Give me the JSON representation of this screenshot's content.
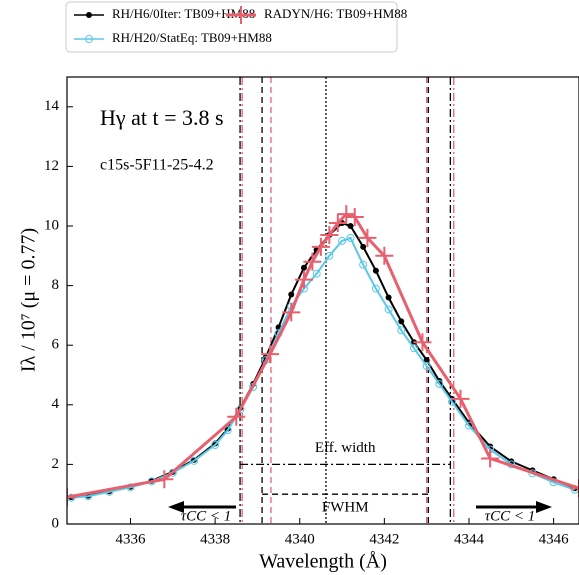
{
  "chart_data": {
    "type": "line",
    "x_label": "Wavelength (Å)",
    "y_label": "Iλ / 10⁷ (μ = 0.77)",
    "annotations": [
      "Hγ at t = 3.8 s",
      "c15s-5F11-25-4.2"
    ],
    "xlim": [
      4334.5,
      4346.6
    ],
    "ylim": [
      0,
      15
    ],
    "xticks": [
      4336,
      4338,
      4340,
      4342,
      4344,
      4346
    ],
    "yticks": [
      0,
      2,
      4,
      6,
      8,
      10,
      12,
      14
    ],
    "legend": "top",
    "series": [
      {
        "name": "RH/H6/0Iter: TB09+HM88",
        "color": "#000000",
        "marker": "dot",
        "x": [
          4334.6,
          4335.0,
          4335.5,
          4336.0,
          4336.5,
          4337.0,
          4337.5,
          4338.0,
          4338.3,
          4338.6,
          4338.9,
          4339.2,
          4339.5,
          4339.8,
          4340.1,
          4340.4,
          4340.7,
          4341.0,
          4341.2,
          4341.5,
          4341.8,
          4342.1,
          4342.4,
          4342.7,
          4343.0,
          4343.3,
          4343.6,
          4344.0,
          4344.5,
          4345.0,
          4345.5,
          4346.0,
          4346.5
        ],
        "values": [
          0.9,
          0.95,
          1.1,
          1.25,
          1.45,
          1.75,
          2.15,
          2.7,
          3.2,
          3.9,
          4.7,
          5.6,
          6.6,
          7.7,
          8.6,
          9.2,
          9.7,
          10.1,
          10.0,
          9.3,
          8.5,
          7.6,
          6.8,
          6.1,
          5.5,
          4.8,
          4.2,
          3.4,
          2.6,
          2.1,
          1.8,
          1.5,
          1.2
        ]
      },
      {
        "name": "RH/H20/StatEq:  TB09+HM88",
        "color": "#5bc8e8",
        "marker": "circle",
        "x": [
          4334.6,
          4335.0,
          4335.5,
          4336.0,
          4336.5,
          4337.0,
          4337.5,
          4338.0,
          4338.3,
          4338.6,
          4338.9,
          4339.2,
          4339.5,
          4339.8,
          4340.1,
          4340.4,
          4340.7,
          4341.0,
          4341.2,
          4341.5,
          4341.8,
          4342.1,
          4342.4,
          4342.7,
          4343.0,
          4343.3,
          4343.6,
          4344.0,
          4344.5,
          4345.0,
          4345.5,
          4346.0,
          4346.5
        ],
        "values": [
          0.88,
          0.93,
          1.08,
          1.23,
          1.43,
          1.72,
          2.12,
          2.65,
          3.15,
          3.85,
          4.6,
          5.5,
          6.4,
          7.3,
          7.9,
          8.4,
          9.0,
          9.5,
          9.6,
          8.7,
          7.9,
          7.2,
          6.5,
          5.9,
          5.3,
          4.7,
          4.1,
          3.3,
          2.5,
          2.0,
          1.7,
          1.4,
          1.15
        ]
      },
      {
        "name": "RADYN/H6: TB09+HM88",
        "color": "#e8606e",
        "marker": "plus",
        "x": [
          4334.5,
          4336.8,
          4338.5,
          4339.3,
          4339.8,
          4340.1,
          4340.3,
          4340.5,
          4340.7,
          4340.9,
          4341.1,
          4341.3,
          4341.6,
          4342.0,
          4342.9,
          4343.8,
          4344.5,
          4346.6
        ],
        "values": [
          0.9,
          1.5,
          3.6,
          5.7,
          7.1,
          8.2,
          8.8,
          9.3,
          9.7,
          10.1,
          10.4,
          10.3,
          9.6,
          9.0,
          6.1,
          4.2,
          2.2,
          1.2
        ]
      }
    ],
    "vlines": [
      {
        "x": 4338.59,
        "color": "#000000",
        "dash": "dashdot"
      },
      {
        "x": 4343.56,
        "color": "#000000",
        "dash": "dashdot"
      },
      {
        "x": 4339.11,
        "color": "#000000",
        "dash": "dashed"
      },
      {
        "x": 4343.04,
        "color": "#000000",
        "dash": "dashed"
      },
      {
        "x": 4340.62,
        "color": "#000000",
        "dash": "dotted"
      },
      {
        "x": 4338.64,
        "color": "#e8606e",
        "dash": "dashdot"
      },
      {
        "x": 4343.64,
        "color": "#e8606e",
        "dash": "dashdot"
      },
      {
        "x": 4339.32,
        "color": "#e8606e",
        "dash": "dashed"
      },
      {
        "x": 4343.0,
        "color": "#e8606e",
        "dash": "dashed"
      }
    ],
    "hlines": [
      {
        "x": [
          4338.59,
          4343.56
        ],
        "y": 2,
        "dash": "dashdot",
        "label": "Eff. width"
      },
      {
        "x": [
          4339.11,
          4343.04
        ],
        "y": 1,
        "dash": "dashed",
        "label": "FWHM"
      }
    ],
    "arrows": [
      {
        "label": "τCC < 1",
        "direction": "left"
      },
      {
        "label": "τCC < 1",
        "direction": "right"
      }
    ]
  }
}
